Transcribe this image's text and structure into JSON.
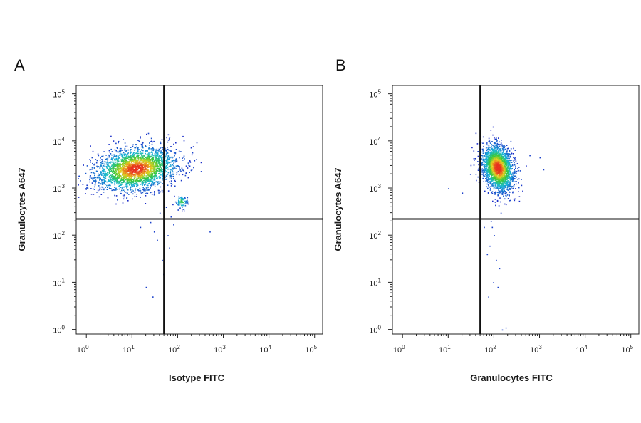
{
  "colors": {
    "density_low": "#1a2cc8",
    "density_mid": "#18b8d8",
    "density_high": "#38c838",
    "density_peak": "#e8d020",
    "density_max": "#e83020",
    "gate_line": "#111111"
  },
  "chart_data": [
    {
      "type": "scatter",
      "panel": "A",
      "xlabel": "Isotype FITC",
      "ylabel": "Granulocytes A647",
      "x_scale": "log",
      "y_scale": "log",
      "xlim": [
        0.6,
        150000
      ],
      "ylim": [
        0.8,
        150000
      ],
      "x_ticks": [
        {
          "base": "10",
          "exp": "0"
        },
        {
          "base": "10",
          "exp": "1"
        },
        {
          "base": "10",
          "exp": "2"
        },
        {
          "base": "10",
          "exp": "3"
        },
        {
          "base": "10",
          "exp": "4"
        },
        {
          "base": "10",
          "exp": "5"
        }
      ],
      "y_ticks": [
        {
          "base": "10",
          "exp": "0"
        },
        {
          "base": "10",
          "exp": "1"
        },
        {
          "base": "10",
          "exp": "2"
        },
        {
          "base": "10",
          "exp": "3"
        },
        {
          "base": "10",
          "exp": "4"
        },
        {
          "base": "10",
          "exp": "5"
        }
      ],
      "gates": {
        "x": 50,
        "y": 220
      },
      "populations": [
        {
          "cx": 12,
          "cy": 2600,
          "sx": 0.45,
          "sy": 0.22,
          "rot": 0.15,
          "n": 2600,
          "peak": 1.0
        },
        {
          "cx": 120,
          "cy": 520,
          "sx": 0.07,
          "sy": 0.07,
          "rot": 0,
          "n": 70,
          "peak": 0.55
        }
      ],
      "scatter_points": [
        [
          200,
          2500
        ],
        [
          320,
          2300
        ],
        [
          150,
          3000
        ],
        [
          55,
          400
        ],
        [
          40,
          300
        ],
        [
          70,
          250
        ],
        [
          30,
          120
        ],
        [
          50,
          60
        ],
        [
          45,
          30
        ],
        [
          20,
          8
        ],
        [
          28,
          5
        ],
        [
          60,
          100
        ],
        [
          500,
          120
        ],
        [
          25,
          190
        ],
        [
          80,
          170
        ],
        [
          35,
          80
        ],
        [
          48,
          15
        ],
        [
          15,
          150
        ],
        [
          65,
          55
        ],
        [
          100,
          350
        ]
      ]
    },
    {
      "type": "scatter",
      "panel": "B",
      "xlabel": "Granulocytes FITC",
      "ylabel": "Granulocytes A647",
      "x_scale": "log",
      "y_scale": "log",
      "xlim": [
        0.6,
        150000
      ],
      "ylim": [
        0.8,
        150000
      ],
      "x_ticks": [
        {
          "base": "10",
          "exp": "0"
        },
        {
          "base": "10",
          "exp": "1"
        },
        {
          "base": "10",
          "exp": "2"
        },
        {
          "base": "10",
          "exp": "3"
        },
        {
          "base": "10",
          "exp": "4"
        },
        {
          "base": "10",
          "exp": "5"
        }
      ],
      "y_ticks": [
        {
          "base": "10",
          "exp": "0"
        },
        {
          "base": "10",
          "exp": "1"
        },
        {
          "base": "10",
          "exp": "2"
        },
        {
          "base": "10",
          "exp": "3"
        },
        {
          "base": "10",
          "exp": "4"
        },
        {
          "base": "10",
          "exp": "5"
        }
      ],
      "gates": {
        "x": 50,
        "y": 220
      },
      "populations": [
        {
          "cx": 120,
          "cy": 2700,
          "sx": 0.16,
          "sy": 0.25,
          "rot": 0.3,
          "n": 2200,
          "peak": 1.0
        }
      ],
      "scatter_points": [
        [
          600,
          5000
        ],
        [
          1000,
          4500
        ],
        [
          1200,
          2500
        ],
        [
          30,
          2000
        ],
        [
          10,
          1000
        ],
        [
          20,
          800
        ],
        [
          90,
          150
        ],
        [
          100,
          100
        ],
        [
          80,
          60
        ],
        [
          110,
          30
        ],
        [
          95,
          10
        ],
        [
          120,
          8
        ],
        [
          75,
          5
        ],
        [
          140,
          300
        ],
        [
          85,
          200
        ],
        [
          150,
          1
        ],
        [
          180,
          1.1
        ],
        [
          70,
          40
        ],
        [
          130,
          20
        ],
        [
          60,
          150
        ]
      ]
    }
  ]
}
